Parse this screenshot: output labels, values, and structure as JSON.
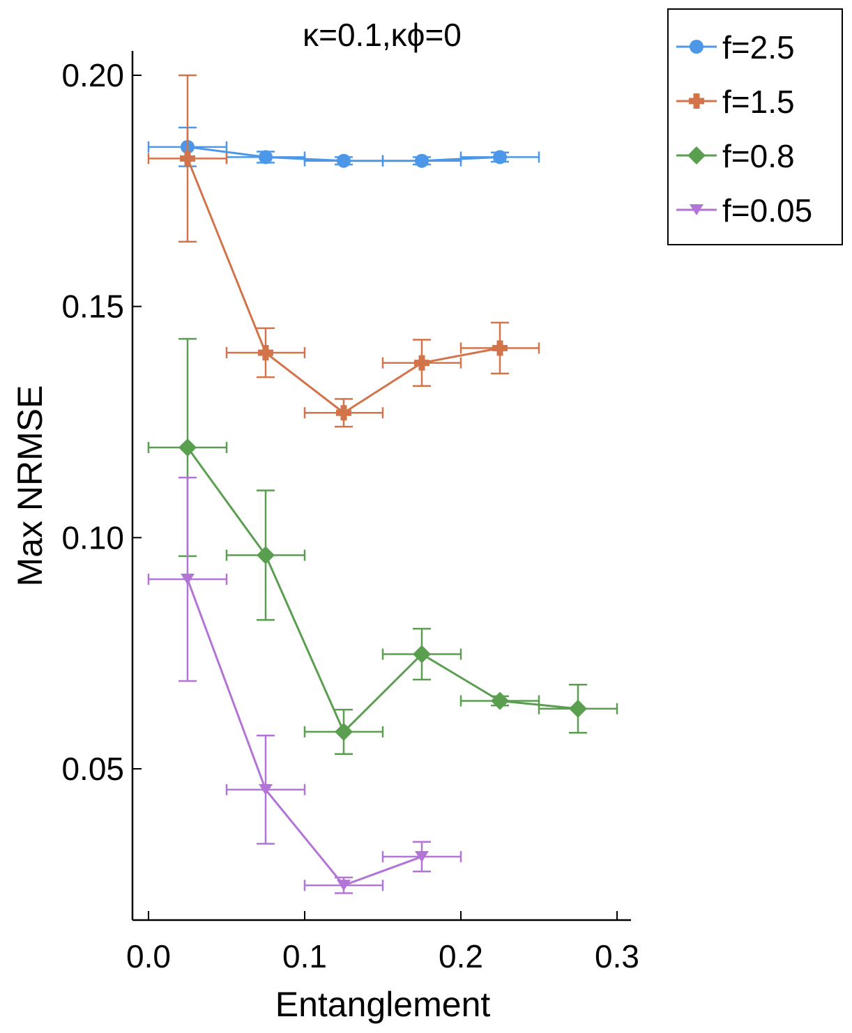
{
  "chart_data": {
    "type": "line",
    "title": "κ=0.1,κϕ=0",
    "xlabel": "Entanglement",
    "ylabel": "Max NRMSE",
    "xlim": [
      -0.01,
      0.31
    ],
    "ylim": [
      0.018,
      0.206
    ],
    "xticks": [
      0.0,
      0.1,
      0.2,
      0.3
    ],
    "xtick_labels": [
      "0.0",
      "0.1",
      "0.2",
      "0.3"
    ],
    "yticks": [
      0.05,
      0.1,
      0.15,
      0.2
    ],
    "ytick_labels": [
      "0.05",
      "0.10",
      "0.15",
      "0.20"
    ],
    "grid": false,
    "legend_position": "outside-top-right",
    "series": [
      {
        "name": "f=2.5",
        "color": "#4C97E8",
        "marker": "circle",
        "x": [
          0.025,
          0.075,
          0.125,
          0.175,
          0.225
        ],
        "y": [
          0.1845,
          0.1823,
          0.1815,
          0.1815,
          0.1823
        ],
        "xerr": [
          0.025,
          0.025,
          0.025,
          0.025,
          0.025
        ],
        "yerr": [
          0.0042,
          0.0012,
          0.0008,
          0.0008,
          0.001
        ]
      },
      {
        "name": "f=1.5",
        "color": "#D2734A",
        "marker": "cross",
        "x": [
          0.025,
          0.075,
          0.125,
          0.175,
          0.225
        ],
        "y": [
          0.182,
          0.14,
          0.127,
          0.1378,
          0.141
        ],
        "xerr": [
          0.025,
          0.025,
          0.025,
          0.025,
          0.025
        ],
        "yerr": [
          0.018,
          0.0053,
          0.003,
          0.005,
          0.0055
        ]
      },
      {
        "name": "f=0.8",
        "color": "#5A9E4F",
        "marker": "diamond",
        "x": [
          0.025,
          0.075,
          0.125,
          0.175,
          0.225,
          0.275
        ],
        "y": [
          0.1195,
          0.0962,
          0.058,
          0.0748,
          0.0647,
          0.063
        ],
        "xerr": [
          0.025,
          0.025,
          0.025,
          0.025,
          0.025,
          0.025
        ],
        "yerr": [
          0.0235,
          0.014,
          0.0048,
          0.0055,
          0.001,
          0.0052
        ]
      },
      {
        "name": "f=0.05",
        "color": "#B274D6",
        "marker": "triangle-down",
        "x": [
          0.025,
          0.075,
          0.125,
          0.175
        ],
        "y": [
          0.091,
          0.0455,
          0.0248,
          0.031
        ],
        "xerr": [
          0.025,
          0.025,
          0.025,
          0.025
        ],
        "yerr": [
          0.022,
          0.0117,
          0.0017,
          0.0032
        ]
      }
    ]
  }
}
